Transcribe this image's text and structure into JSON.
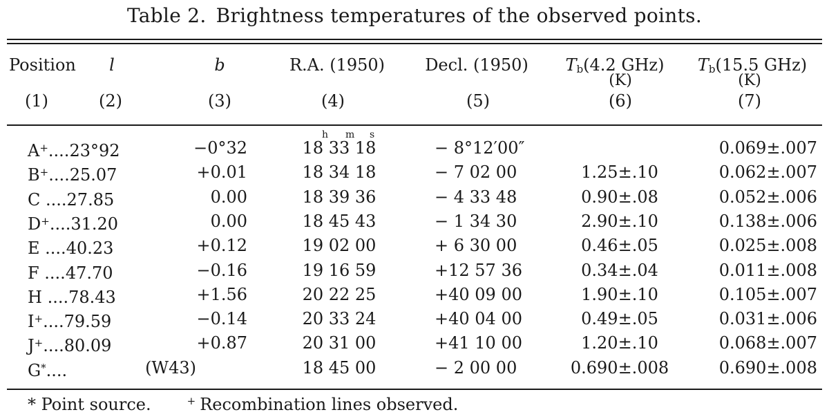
{
  "caption": {
    "number": "Table 2.",
    "title": "Brightness temperatures of the observed points."
  },
  "headers": {
    "position": "Position",
    "position_n": "(1)",
    "l": "l",
    "l_n": "(2)",
    "b": "b",
    "b_n": "(3)",
    "ra": "R.A. (1950)",
    "ra_n": "(4)",
    "dec": "Decl. (1950)",
    "dec_n": "(5)",
    "tb1_sym": "T",
    "tb1_sub": "b",
    "tb1_rest": "(4.2 GHz)",
    "tb1_unit": "(K)",
    "tb1_n": "(6)",
    "tb2_sym": "T",
    "tb2_sub": "b",
    "tb2_rest": "(15.5 GHz)",
    "tb2_unit": "(K)",
    "tb2_n": "(7)"
  },
  "ra_units": {
    "h": "h",
    "m": "m",
    "s": "s"
  },
  "rows": [
    {
      "pos": "A",
      "mark": "+",
      "dots": "....",
      "l": "23°92",
      "b": "−0°32",
      "ra": "18 33 18",
      "dec": "− 8°12′00″",
      "tb42": "",
      "tb155": "0.069±.007"
    },
    {
      "pos": "B",
      "mark": "+",
      "dots": "....",
      "l": "25.07",
      "b": "+0.01",
      "ra": "18 34 18",
      "dec": "− 7 02 00",
      "tb42": "1.25±.10",
      "tb155": "0.062±.007"
    },
    {
      "pos": "C",
      "mark": "",
      "dots": " ....",
      "l": "27.85",
      "b": "0.00",
      "ra": "18 39 36",
      "dec": "− 4 33 48",
      "tb42": "0.90±.08",
      "tb155": "0.052±.006"
    },
    {
      "pos": "D",
      "mark": "+",
      "dots": "....",
      "l": "31.20",
      "b": "0.00",
      "ra": "18 45 43",
      "dec": "− 1 34 30",
      "tb42": "2.90±.10",
      "tb155": "0.138±.006"
    },
    {
      "pos": "E",
      "mark": "",
      "dots": " ....",
      "l": "40.23",
      "b": "+0.12",
      "ra": "19 02 00",
      "dec": "+ 6 30 00",
      "tb42": "0.46±.05",
      "tb155": "0.025±.008"
    },
    {
      "pos": "F",
      "mark": "",
      "dots": " ....",
      "l": "47.70",
      "b": "−0.16",
      "ra": "19 16 59",
      "dec": "+12 57 36",
      "tb42": "0.34±.04",
      "tb155": "0.011±.008"
    },
    {
      "pos": "H",
      "mark": "",
      "dots": " ....",
      "l": "78.43",
      "b": "+1.56",
      "ra": "20 22 25",
      "dec": "+40 09 00",
      "tb42": "1.90±.10",
      "tb155": "0.105±.007"
    },
    {
      "pos": "I",
      "mark": "+",
      "dots": "....",
      "l": "79.59",
      "b": "−0.14",
      "ra": "20 33 24",
      "dec": "+40 04 00",
      "tb42": "0.49±.05",
      "tb155": "0.031±.006"
    },
    {
      "pos": "J",
      "mark": "+",
      "dots": "....",
      "l": "80.09",
      "b": "+0.87",
      "ra": "20 31 00",
      "dec": "+41 10 00",
      "tb42": "1.20±.10",
      "tb155": "0.068±.007"
    },
    {
      "pos": "G",
      "mark": "*",
      "dots": "....",
      "l": "",
      "b": "(W43)",
      "ra": "18 45 00",
      "dec": "− 2 00 00",
      "tb42": "0.690±.008",
      "tb155": "0.690±.008"
    }
  ],
  "footnotes": {
    "star": "* Point source.",
    "plus_mark": "+",
    "plus_text": "Recombination lines observed."
  }
}
